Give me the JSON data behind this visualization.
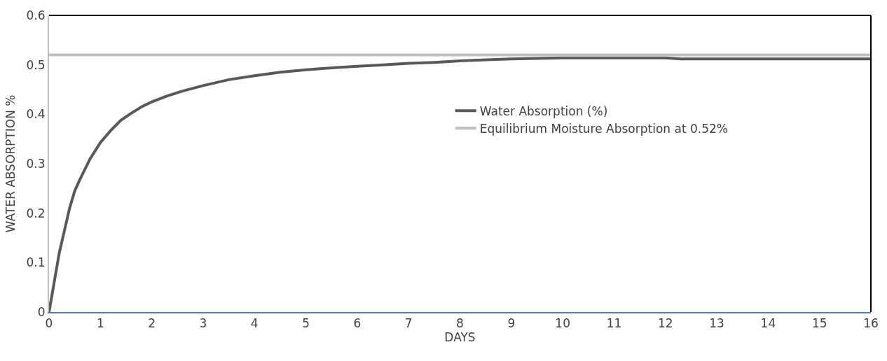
{
  "chart_data": {
    "type": "line",
    "xlabel": "DAYS",
    "ylabel": "WATER ABSORPTION %",
    "xlim": [
      0,
      16
    ],
    "xticks": [
      0,
      1,
      2,
      3,
      4,
      5,
      6,
      7,
      8,
      9,
      10,
      11,
      12,
      13,
      14,
      15,
      16
    ],
    "ylim": [
      0,
      0.6
    ],
    "yticks": [
      0,
      0.1,
      0.2,
      0.3,
      0.4,
      0.5,
      0.6
    ],
    "legend": "right",
    "marker": "none",
    "line_style": "solid",
    "series": [
      {
        "name": "Water Absorption (%)",
        "color": "#595959",
        "x": [
          0,
          0.1,
          0.2,
          0.3,
          0.4,
          0.5,
          0.6,
          0.8,
          1,
          1.2,
          1.4,
          1.6,
          1.8,
          2,
          2.3,
          2.6,
          3,
          3.5,
          4,
          4.5,
          5,
          5.5,
          6,
          6.5,
          7,
          7.5,
          8,
          8.5,
          9,
          9.5,
          10,
          11,
          12,
          12.3,
          13,
          14,
          15,
          16
        ],
        "values": [
          0,
          0.06,
          0.12,
          0.165,
          0.21,
          0.245,
          0.268,
          0.31,
          0.343,
          0.367,
          0.388,
          0.402,
          0.415,
          0.425,
          0.437,
          0.447,
          0.458,
          0.47,
          0.478,
          0.485,
          0.49,
          0.494,
          0.497,
          0.5,
          0.503,
          0.505,
          0.508,
          0.51,
          0.512,
          0.513,
          0.514,
          0.514,
          0.514,
          0.512,
          0.512,
          0.512,
          0.512,
          0.512
        ]
      },
      {
        "name": "Equilibrium Moisture Absorption at 0.52%",
        "color": "#bfbfbf",
        "x": [
          0,
          16
        ],
        "values": [
          0.52,
          0.52
        ]
      }
    ]
  }
}
